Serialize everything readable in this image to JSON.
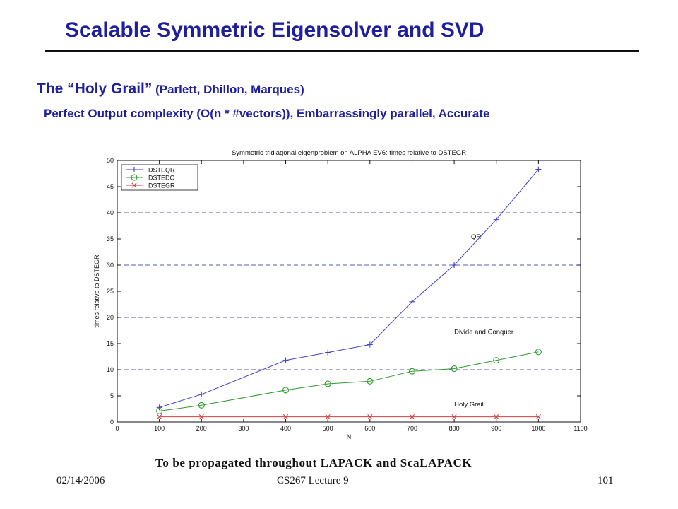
{
  "slide": {
    "title": "Scalable Symmetric Eigensolver and SVD",
    "subtitle_main": "The “Holy Grail”",
    "subtitle_authors": " (Parlett, Dhillon, Marques)",
    "bullet": "Perfect Output complexity (O(n * #vectors)), Embarrassingly parallel, Accurate",
    "propagate_note": "To be propagated throughout LAPACK and ScaLAPACK",
    "footer": {
      "date": "02/14/2006",
      "course": "CS267 Lecture 9",
      "page": "101"
    }
  },
  "chart_data": {
    "type": "line",
    "title": "Symmetric tridiagonal eigenproblem on ALPHA EV6: times relative to DSTEGR",
    "xlabel": "N",
    "ylabel": "times relative to DSTEGR",
    "xlim": [
      0,
      1100
    ],
    "ylim": [
      0,
      50
    ],
    "xticks": [
      0,
      100,
      200,
      300,
      400,
      500,
      600,
      700,
      800,
      900,
      1000,
      1100
    ],
    "yticks": [
      0,
      5,
      10,
      15,
      20,
      25,
      30,
      35,
      40,
      45,
      50
    ],
    "grid_y": [
      10,
      20,
      30,
      40
    ],
    "legend_position": "top-left",
    "x": [
      100,
      200,
      400,
      500,
      600,
      700,
      800,
      900,
      1000
    ],
    "series": [
      {
        "name": "DSTEQR",
        "color": "#4040c0",
        "marker": "plus",
        "values": [
          2.8,
          5.3,
          11.8,
          13.3,
          14.8,
          23.0,
          30.0,
          38.7,
          48.3
        ]
      },
      {
        "name": "DSTEDC",
        "color": "#2e9a2e",
        "marker": "circle",
        "values": [
          2.1,
          3.2,
          6.1,
          7.3,
          7.8,
          9.7,
          10.2,
          11.8,
          13.4
        ]
      },
      {
        "name": "DSTEGR",
        "color": "#d04040",
        "marker": "x",
        "values": [
          1,
          1,
          1,
          1,
          1,
          1,
          1,
          1,
          1
        ]
      }
    ],
    "annotations": [
      {
        "text": "QR",
        "x": 840,
        "y": 35
      },
      {
        "text": "Divide and Conquer",
        "x": 800,
        "y": 16.8
      },
      {
        "text": "Holy Grail",
        "x": 800,
        "y": 3
      }
    ]
  }
}
